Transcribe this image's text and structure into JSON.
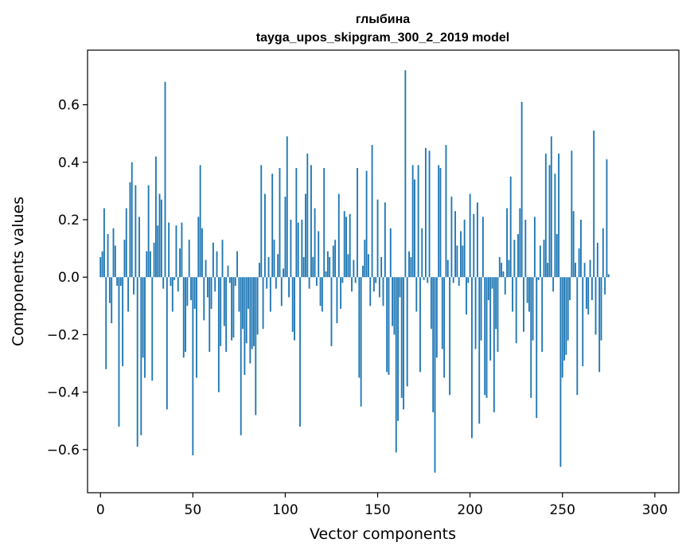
{
  "chart_data": {
    "type": "bar",
    "title": "глыбина",
    "subtitle": "tayga_upos_skipgram_300_2_2019 model",
    "xlabel": "Vector components",
    "ylabel": "Components values",
    "xlim": [
      -7,
      313
    ],
    "ylim": [
      -0.75,
      0.79
    ],
    "x_ticks": [
      0,
      50,
      100,
      150,
      200,
      250,
      300
    ],
    "x_tick_labels": [
      "0",
      "50",
      "100",
      "150",
      "200",
      "250",
      "300"
    ],
    "y_ticks": [
      -0.6,
      -0.4,
      -0.2,
      0.0,
      0.2,
      0.4,
      0.6
    ],
    "y_tick_labels": [
      "−0.6",
      "−0.4",
      "−0.2",
      "0.0",
      "0.2",
      "0.4",
      "0.6"
    ],
    "grid": false,
    "bar_color": "#1f77b4",
    "values": [
      0.07,
      0.09,
      0.24,
      -0.32,
      0.15,
      -0.09,
      -0.16,
      0.17,
      0.11,
      -0.03,
      -0.52,
      -0.03,
      -0.31,
      0.13,
      0.24,
      -0.12,
      0.33,
      0.4,
      -0.06,
      0.32,
      -0.59,
      0.21,
      -0.55,
      -0.28,
      -0.35,
      0.09,
      0.32,
      0.09,
      -0.36,
      0.12,
      0.42,
      0.18,
      0.29,
      0.27,
      -0.04,
      0.68,
      -0.46,
      0.19,
      -0.03,
      -0.12,
      -0.01,
      0.18,
      -0.05,
      0.1,
      0.19,
      -0.28,
      -0.26,
      -0.1,
      0.13,
      -0.08,
      -0.62,
      -0.11,
      -0.35,
      0.21,
      0.39,
      0.17,
      -0.15,
      0.06,
      -0.07,
      -0.26,
      -0.11,
      0.12,
      -0.05,
      0.09,
      -0.4,
      -0.24,
      0.13,
      -0.17,
      -0.26,
      0.04,
      -0.02,
      -0.22,
      -0.21,
      -0.03,
      0.09,
      -0.12,
      -0.55,
      -0.18,
      -0.34,
      -0.23,
      -0.11,
      -0.3,
      -0.25,
      -0.24,
      -0.48,
      -0.2,
      0.05,
      0.39,
      -0.18,
      0.29,
      -0.04,
      0.07,
      -0.12,
      0.36,
      0.13,
      -0.04,
      0.08,
      0.38,
      -0.1,
      0.03,
      0.28,
      0.49,
      -0.07,
      0.2,
      -0.19,
      -0.22,
      0.38,
      0.19,
      -0.52,
      0.2,
      0.07,
      0.29,
      0.43,
      -0.04,
      0.39,
      0.07,
      0.24,
      -0.03,
      0.16,
      -0.1,
      -0.12,
      0.38,
      0.02,
      0.09,
      0.07,
      -0.24,
      0.11,
      0.13,
      -0.16,
      0.29,
      -0.11,
      -0.02,
      0.23,
      0.21,
      0.08,
      0.22,
      -0.05,
      0.06,
      -0.02,
      0.38,
      -0.35,
      -0.45,
      0.04,
      0.13,
      0.37,
      0.08,
      -0.1,
      0.46,
      -0.05,
      -0.02,
      0.27,
      -0.07,
      0.07,
      -0.1,
      0.26,
      -0.33,
      -0.34,
      0.17,
      -0.17,
      -0.2,
      -0.61,
      -0.5,
      -0.07,
      -0.42,
      -0.46,
      0.72,
      -0.38,
      0.09,
      0.07,
      0.39,
      0.34,
      -0.12,
      0.39,
      -0.33,
      0.17,
      -0.01,
      0.45,
      -0.02,
      0.44,
      -0.18,
      -0.47,
      -0.68,
      -0.28,
      0.39,
      0.38,
      -0.25,
      -0.35,
      0.46,
      0.06,
      -0.41,
      0.28,
      -0.02,
      0.23,
      0.11,
      -0.03,
      0.16,
      0.11,
      0.2,
      -0.13,
      -0.02,
      0.29,
      -0.56,
      0.22,
      -0.25,
      0.26,
      -0.51,
      -0.22,
      0.21,
      -0.41,
      -0.42,
      -0.08,
      -0.29,
      -0.04,
      -0.47,
      -0.18,
      -0.26,
      0.07,
      0.05,
      0.02,
      -0.06,
      0.24,
      0.06,
      0.35,
      -0.12,
      0.13,
      -0.23,
      0.15,
      0.24,
      0.61,
      -0.19,
      0.2,
      -0.09,
      -0.12,
      -0.42,
      -0.22,
      0.21,
      -0.49,
      -0.01,
      0.11,
      -0.26,
      0.13,
      0.43,
      0.05,
      0.39,
      0.49,
      -0.05,
      0.36,
      0.15,
      0.43,
      -0.66,
      -0.35,
      -0.29,
      -0.27,
      -0.22,
      -0.08,
      0.44,
      0.23,
      0.05,
      -0.41,
      0.1,
      0.2,
      -0.31,
      0.05,
      -0.11,
      -0.13,
      0.06,
      -0.08,
      0.51,
      -0.2,
      0.12,
      -0.33,
      -0.22,
      0.17,
      -0.06,
      0.41,
      0.01
    ]
  }
}
